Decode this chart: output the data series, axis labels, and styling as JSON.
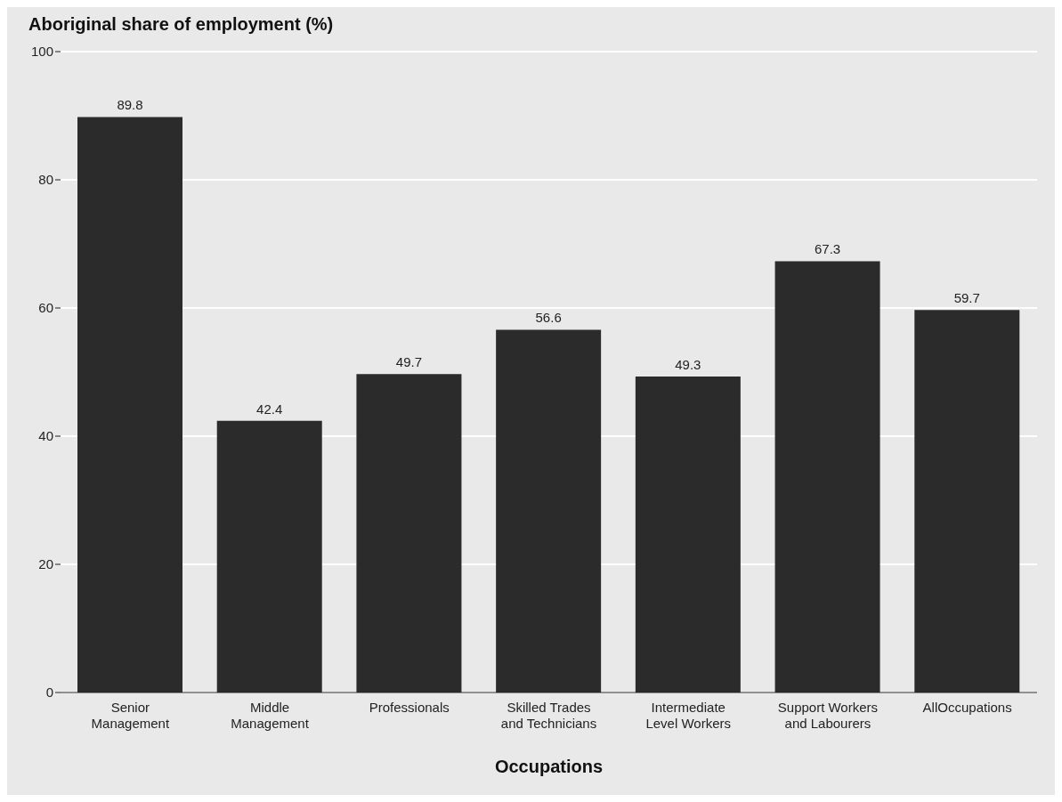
{
  "chart_data": {
    "type": "bar",
    "ylabel": "Aboriginal share of employment (%)",
    "xlabel": "Occupations",
    "categories": [
      "Senior\nManagement",
      "Middle\nManagement",
      "Professionals",
      "Skilled Trades\nand Technicians",
      "Intermediate\nLevel Workers",
      "Support Workers\nand Labourers",
      "AllOccupations"
    ],
    "values": [
      89.8,
      42.4,
      49.7,
      56.6,
      49.3,
      67.3,
      59.7
    ],
    "color": "#2b2b2b",
    "ylim": [
      0,
      100
    ],
    "yticks": [
      0,
      20,
      40,
      60,
      80,
      100
    ],
    "grid": "y",
    "data_labels": true
  }
}
